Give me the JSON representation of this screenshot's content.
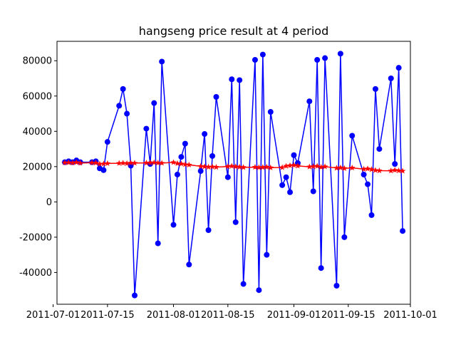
{
  "chart_data": {
    "type": "line",
    "title": "hangseng price result at 4 period",
    "xlabel": "",
    "ylabel": "",
    "grid": false,
    "xlim": [
      "2011-07-02",
      "2011-10-01"
    ],
    "ylim": [
      -58000,
      91000
    ],
    "x_tick_labels": [
      "2011-07-01",
      "2011-07-15",
      "2011-08-01",
      "2011-08-15",
      "2011-09-01",
      "2011-09-15",
      "2011-10-01"
    ],
    "y_tick_labels": [
      "-40000",
      "-20000",
      "0",
      "20000",
      "40000",
      "60000",
      "80000"
    ],
    "series": [
      {
        "color": "#0000ff",
        "marker": "circle",
        "x": [
          "2011-07-04",
          "2011-07-05",
          "2011-07-06",
          "2011-07-07",
          "2011-07-08",
          "2011-07-11",
          "2011-07-12",
          "2011-07-13",
          "2011-07-14",
          "2011-07-15",
          "2011-07-18",
          "2011-07-19",
          "2011-07-20",
          "2011-07-21",
          "2011-07-22",
          "2011-07-25",
          "2011-07-26",
          "2011-07-27",
          "2011-07-28",
          "2011-07-29",
          "2011-08-01",
          "2011-08-02",
          "2011-08-03",
          "2011-08-04",
          "2011-08-05",
          "2011-08-08",
          "2011-08-09",
          "2011-08-10",
          "2011-08-11",
          "2011-08-12",
          "2011-08-15",
          "2011-08-16",
          "2011-08-17",
          "2011-08-18",
          "2011-08-19",
          "2011-08-22",
          "2011-08-23",
          "2011-08-24",
          "2011-08-25",
          "2011-08-26",
          "2011-08-29",
          "2011-08-30",
          "2011-08-31",
          "2011-09-01",
          "2011-09-02",
          "2011-09-05",
          "2011-09-06",
          "2011-09-07",
          "2011-09-08",
          "2011-09-09",
          "2011-09-12",
          "2011-09-13",
          "2011-09-14",
          "2011-09-16",
          "2011-09-19",
          "2011-09-20",
          "2011-09-21",
          "2011-09-22",
          "2011-09-23",
          "2011-09-26",
          "2011-09-27",
          "2011-09-28",
          "2011-09-29"
        ],
        "y": [
          22500,
          23000,
          22500,
          23500,
          22500,
          22500,
          23000,
          19000,
          18000,
          34000,
          54500,
          64000,
          50000,
          20500,
          -53000,
          41500,
          21500,
          56000,
          -23500,
          79500,
          -13000,
          15500,
          25500,
          33000,
          -35500,
          17500,
          38500,
          -16000,
          26000,
          59500,
          14000,
          69500,
          -11500,
          69000,
          -46500,
          80500,
          -50000,
          83500,
          -30000,
          51000,
          9500,
          14000,
          5500,
          26500,
          22000,
          57000,
          6000,
          80500,
          -37500,
          81500,
          -47500,
          84000,
          -20000,
          37500,
          15500,
          10000,
          -7500,
          64000,
          30000,
          70000,
          21500,
          76000,
          -16500
        ]
      },
      {
        "color": "#ff0000",
        "marker": "star",
        "x": [
          "2011-07-04",
          "2011-07-05",
          "2011-07-06",
          "2011-07-07",
          "2011-07-08",
          "2011-07-11",
          "2011-07-12",
          "2011-07-13",
          "2011-07-14",
          "2011-07-15",
          "2011-07-18",
          "2011-07-19",
          "2011-07-20",
          "2011-07-21",
          "2011-07-22",
          "2011-07-25",
          "2011-07-26",
          "2011-07-27",
          "2011-07-28",
          "2011-07-29",
          "2011-08-01",
          "2011-08-02",
          "2011-08-03",
          "2011-08-04",
          "2011-08-05",
          "2011-08-08",
          "2011-08-09",
          "2011-08-10",
          "2011-08-11",
          "2011-08-12",
          "2011-08-15",
          "2011-08-16",
          "2011-08-17",
          "2011-08-18",
          "2011-08-19",
          "2011-08-22",
          "2011-08-23",
          "2011-08-24",
          "2011-08-25",
          "2011-08-26",
          "2011-08-29",
          "2011-08-30",
          "2011-08-31",
          "2011-09-01",
          "2011-09-02",
          "2011-09-05",
          "2011-09-06",
          "2011-09-07",
          "2011-09-08",
          "2011-09-09",
          "2011-09-12",
          "2011-09-13",
          "2011-09-14",
          "2011-09-16",
          "2011-09-19",
          "2011-09-20",
          "2011-09-21",
          "2011-09-22",
          "2011-09-23",
          "2011-09-26",
          "2011-09-27",
          "2011-09-28",
          "2011-09-29"
        ],
        "y": [
          22200,
          22300,
          22100,
          22400,
          22000,
          22200,
          22100,
          21500,
          21600,
          21800,
          21900,
          22000,
          21800,
          22100,
          22000,
          22100,
          22200,
          22300,
          22100,
          22000,
          22400,
          21800,
          21600,
          21200,
          21000,
          20200,
          20000,
          19800,
          19900,
          19700,
          20100,
          20300,
          20000,
          19800,
          19600,
          19700,
          19500,
          19600,
          19800,
          19400,
          19500,
          20300,
          20600,
          20800,
          20400,
          19900,
          20100,
          20300,
          19700,
          20000,
          19200,
          19400,
          19000,
          19300,
          18600,
          18800,
          18400,
          17900,
          17700,
          17600,
          18000,
          17700,
          17500
        ]
      }
    ]
  }
}
